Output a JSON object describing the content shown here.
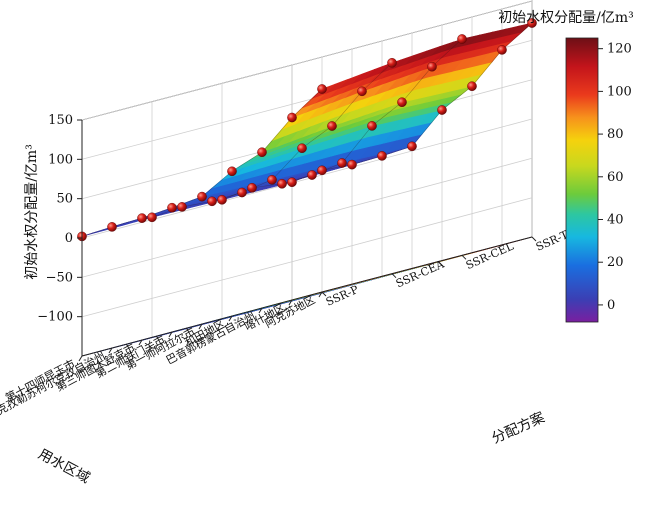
{
  "chart_data": {
    "type": "surface3d",
    "zlabel": "初始水权分配量/亿m³",
    "xlabel": "用水区域",
    "ylabel": "分配方案",
    "colorbar_title": "初始水权分配量/亿m³",
    "zlim": [
      -150,
      150
    ],
    "zticks": [
      "150",
      "100",
      "50",
      "0",
      "−50",
      "−100"
    ],
    "colorbar_range": [
      -8,
      125
    ],
    "colorbar_ticks": [
      "120",
      "100",
      "80",
      "60",
      "40",
      "20",
      "0"
    ],
    "regions": [
      "阿克苏地区",
      "喀什地区",
      "巴音郭楞蒙古自治州",
      "和田地区",
      "第一师阿拉尔市",
      "第二师铁门关市",
      "第三师图木舒克市",
      "克孜勒苏柯尔克孜自治州",
      "第十四师昆玉市"
    ],
    "schemes": [
      "SSR-P",
      "SSR-CEA",
      "SSR-CEL",
      "SSR-TAL"
    ],
    "values": [
      [
        108,
        118,
        125,
        122
      ],
      [
        82,
        92,
        100,
        98
      ],
      [
        48,
        58,
        65,
        62
      ],
      [
        34,
        40,
        45,
        42
      ],
      [
        12,
        10,
        8,
        6
      ],
      [
        8,
        4,
        3,
        4
      ],
      [
        5,
        3,
        2,
        3
      ],
      [
        4,
        6,
        7,
        6
      ],
      [
        2,
        3,
        2,
        1
      ]
    ],
    "grid": true
  }
}
